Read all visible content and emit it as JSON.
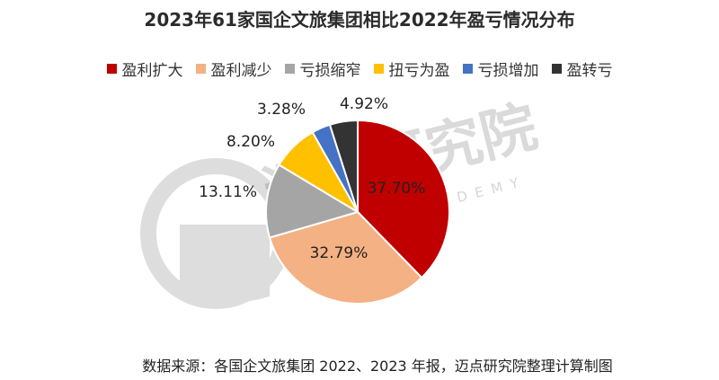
{
  "chart_data": {
    "type": "pie",
    "title": "2023年61家国企文旅集团相比2022年盈亏情况分布",
    "categories": [
      "盈利扩大",
      "盈利减少",
      "亏损缩窄",
      "扭亏为盈",
      "亏损增加",
      "盈转亏"
    ],
    "values": [
      37.7,
      32.79,
      13.11,
      8.2,
      3.28,
      4.92
    ],
    "labels": [
      "37.70%",
      "32.79%",
      "13.11%",
      "8.20%",
      "3.28%",
      "4.92%"
    ],
    "colors": [
      "#C00000",
      "#F4B183",
      "#A5A5A5",
      "#FFC000",
      "#4472C4",
      "#333333"
    ],
    "legend_position": "top"
  },
  "watermark": {
    "cn": "迈点研究院",
    "en": "MEADIN ACADEMY"
  },
  "source": "数据来源：各国企文旅集团 2022、2023 年报，迈点研究院整理计算制图"
}
